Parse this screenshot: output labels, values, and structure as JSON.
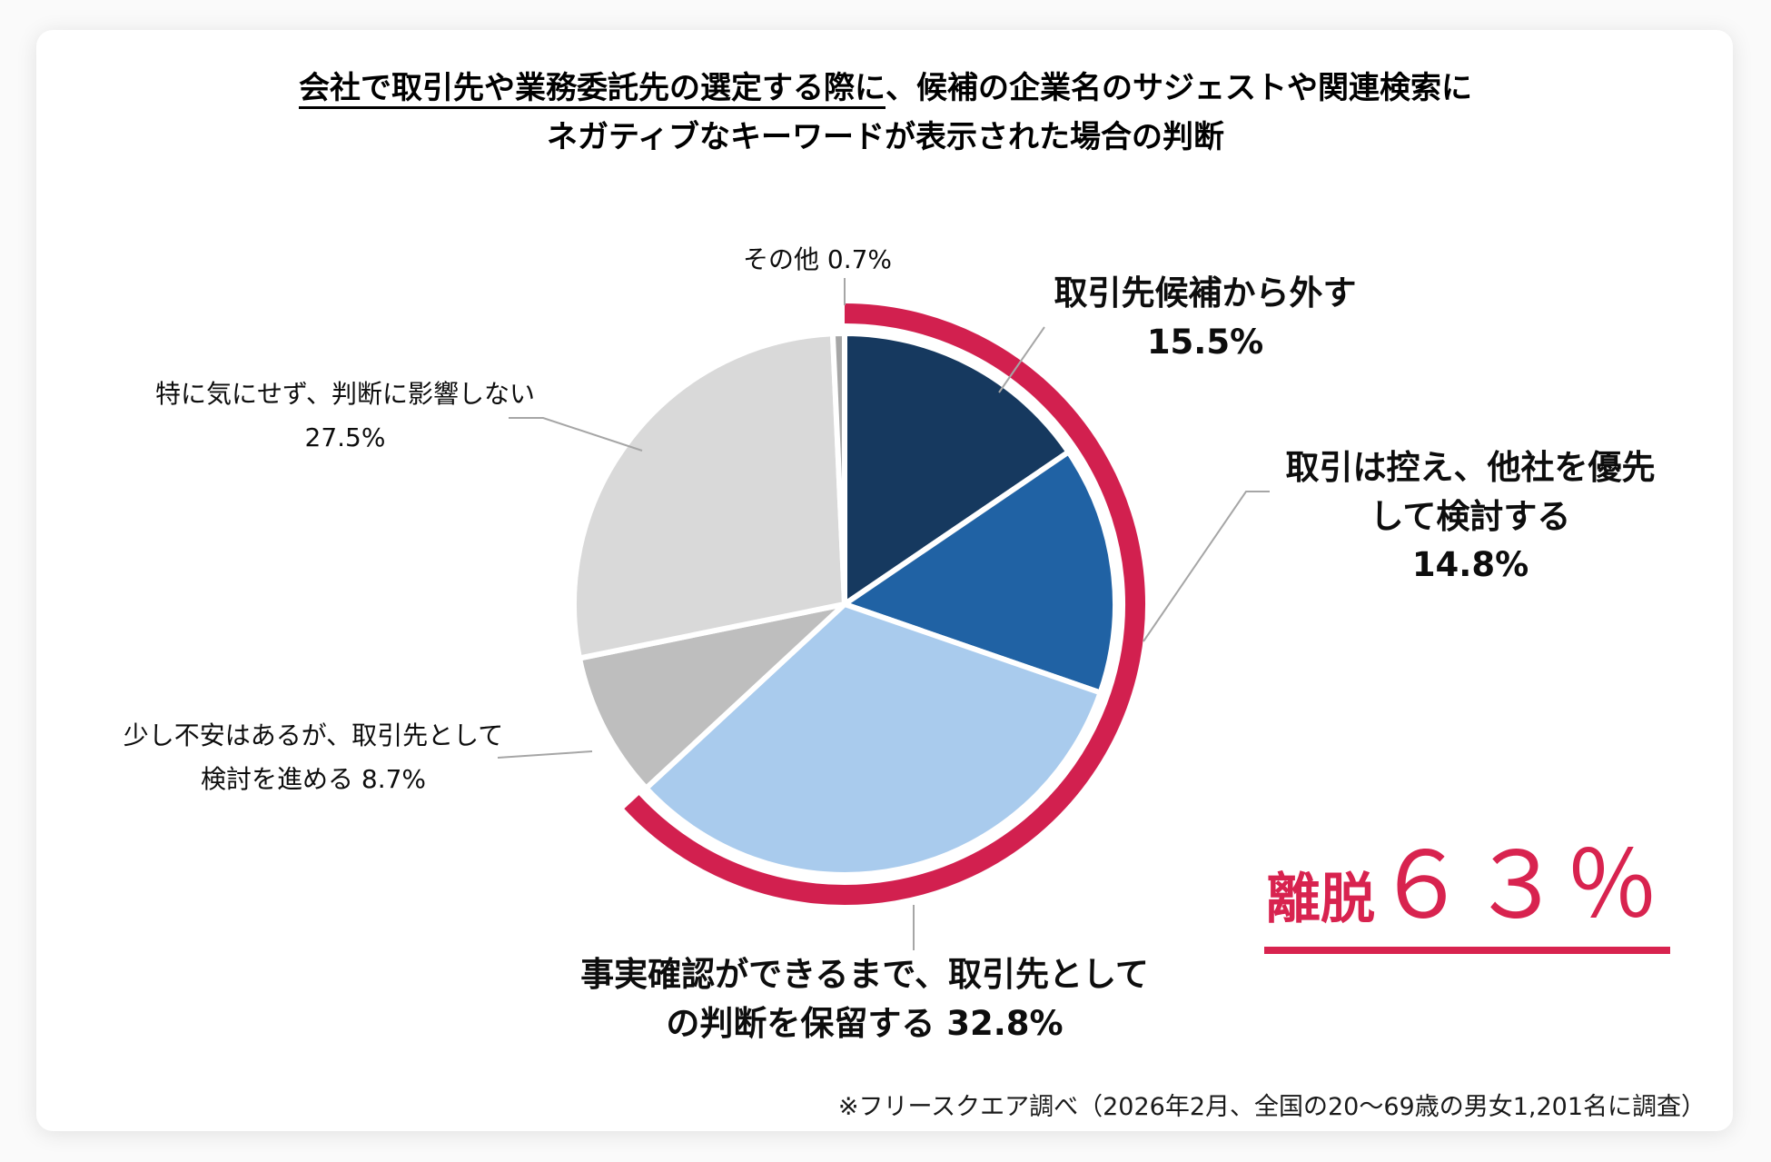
{
  "title": {
    "emphasis": "会社で取引先や業務委託先の選定する際に",
    "rest": "、候補の企業名のサジェストや関連検索に",
    "line2": "ネガティブなキーワードが表示された場合の判断"
  },
  "chart_data": {
    "type": "pie",
    "title": "会社で取引先や業務委託先の選定する際に、候補の企業名のサジェストや関連検索にネガティブなキーワードが表示された場合の判断",
    "direction": "clockwise",
    "start_angle_deg": 0,
    "slices": [
      {
        "label": "取引先候補から外す",
        "value": 15.5,
        "color": "#16395F"
      },
      {
        "label": "取引は控え、他社を優先して検討する",
        "value": 14.8,
        "color": "#2062A4"
      },
      {
        "label": "事実確認ができるまで、取引先としての判断を保留する",
        "value": 32.8,
        "color": "#A9CBED"
      },
      {
        "label": "少し不安はあるが、取引先として検討を進める",
        "value": 8.7,
        "color": "#BEBEBE"
      },
      {
        "label": "特に気にせず、判断に影響しない",
        "value": 27.5,
        "color": "#D9D9D9"
      },
      {
        "label": "その他",
        "value": 0.7,
        "color": "#A6A6A6"
      }
    ],
    "highlight_arc": {
      "label": "離脱",
      "percent": 63,
      "covers_slices": 3,
      "color": "#D2204F"
    },
    "slice_border_color": "#FFFFFF",
    "leader_line_color": "#A6A6A6"
  },
  "callouts": [
    {
      "lines": [
        "その他 0.7%"
      ]
    },
    {
      "lines": [
        "取引先候補から外す",
        "15.5%"
      ]
    },
    {
      "lines": [
        "取引は控え、他社を優先",
        "して検討する",
        "14.8%"
      ]
    },
    {
      "lines": [
        "特に気にせず、判断に影響しない",
        "27.5%"
      ]
    },
    {
      "lines": [
        "少し不安はあるが、取引先として",
        "検討を進める 8.7%"
      ]
    },
    {
      "lines": [
        "事実確認ができるまで、取引先として",
        "の判断を保留する 32.8%"
      ]
    }
  ],
  "takeaway": {
    "prefix": "離脱",
    "value": "６３％",
    "color": "#D8234F"
  },
  "footnote": "※フリースクエア調べ（2026年2月、全国の20～69歳の男女1,201名に調査）"
}
